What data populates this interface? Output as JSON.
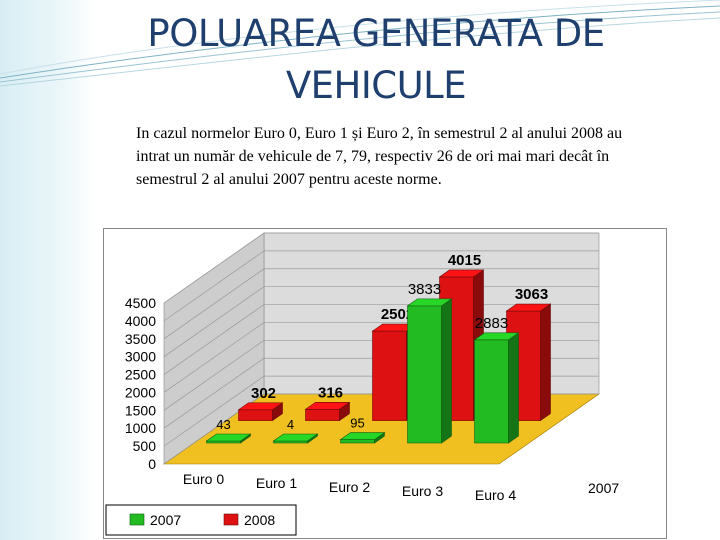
{
  "slide": {
    "title_line1": "POLUAREA GENERATA DE",
    "title_line2": "VEHICULE",
    "body": "In cazul normelor Euro 0, Euro 1 și Euro 2, în semestrul 2 al anului 2008 au intrat un număr de vehicule de 7, 79, respectiv 26 de ori mai mari decât în semestrul 2 al anului 2007 pentru aceste norme."
  },
  "chart_data": {
    "type": "bar",
    "subtype": "3d-grouped",
    "categories": [
      "Euro 0",
      "Euro 1",
      "Euro 2",
      "Euro 3",
      "Euro 4"
    ],
    "series": [
      {
        "name": "2007",
        "color": "#22bb22",
        "values": [
          43,
          4,
          95,
          3833,
          2883
        ]
      },
      {
        "name": "2008",
        "color": "#dd1111",
        "values": [
          302,
          316,
          2502,
          4015,
          3063
        ]
      }
    ],
    "depth_axis_label": "2007",
    "y_ticks": [
      "0",
      "500",
      "1000",
      "1500",
      "2000",
      "2500",
      "3000",
      "3500",
      "4000",
      "4500"
    ],
    "ylim": [
      0,
      4500
    ],
    "legend_position": "bottom-left",
    "grid": true,
    "colors": {
      "wall": "#dcdcdc",
      "floor": "#f0c020",
      "gridline": "#9a9a9a"
    }
  }
}
